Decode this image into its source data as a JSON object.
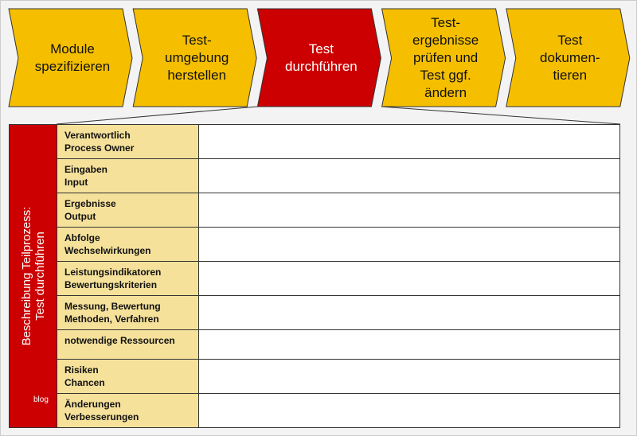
{
  "process_steps": [
    {
      "label": "Module\nspezifizieren",
      "active": false
    },
    {
      "label": "Test-\numgebung\nherstellen",
      "active": false
    },
    {
      "label": "Test\ndurchführen",
      "active": true
    },
    {
      "label": "Test-\nergebnisse\nprüfen und\nTest ggf.\nändern",
      "active": false
    },
    {
      "label": "Test\ndokumen-\ntieren",
      "active": false
    }
  ],
  "colors": {
    "step": "#f5bf00",
    "active_step": "#cc0000",
    "label_cell": "#f5e19a"
  },
  "side_label": "Beschreibung Teilprozess:\nTest durchführen",
  "watermark": "blog",
  "rows": [
    {
      "label": "Verantwortlich\nProcess Owner",
      "value": ""
    },
    {
      "label": "Eingaben\nInput",
      "value": ""
    },
    {
      "label": "Ergebnisse\nOutput",
      "value": ""
    },
    {
      "label": "Abfolge\nWechselwirkungen",
      "value": ""
    },
    {
      "label": "Leistungsindikatoren\nBewertungskriterien",
      "value": ""
    },
    {
      "label": "Messung, Bewertung\nMethoden, Verfahren",
      "value": ""
    },
    {
      "label": "notwendige Ressourcen",
      "value": ""
    },
    {
      "label": "Risiken\nChancen",
      "value": ""
    },
    {
      "label": "Änderungen\nVerbesserungen",
      "value": ""
    }
  ]
}
